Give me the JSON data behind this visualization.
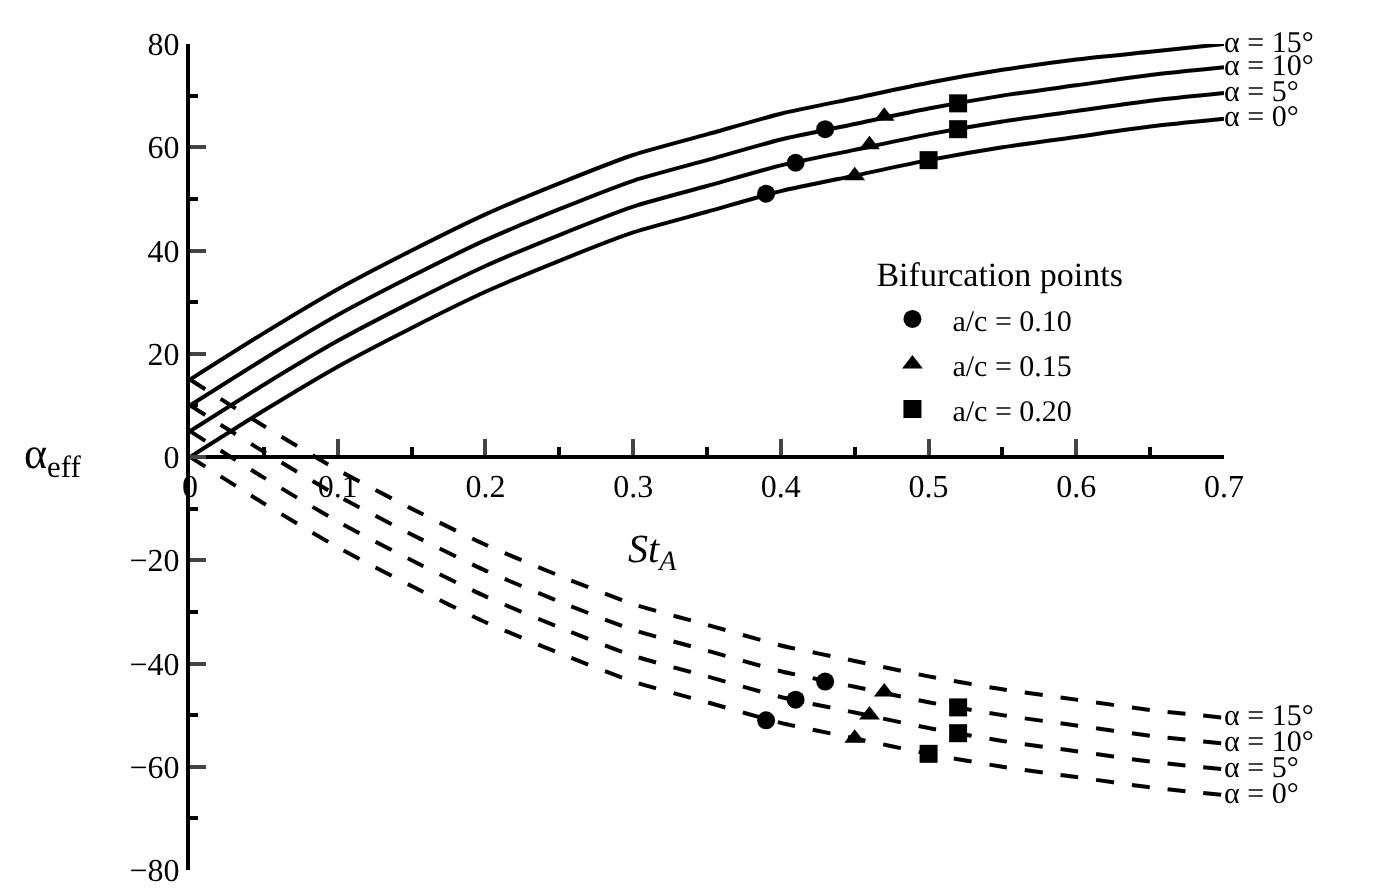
{
  "chart_data": {
    "type": "line",
    "xlabel": "St$_{A}$",
    "ylabel": "α$_{eff}$",
    "legend_title": "Bifurcation points",
    "xlim": [
      0,
      0.7
    ],
    "xticks": [
      0,
      0.1,
      0.2,
      0.3,
      0.4,
      0.5,
      0.6,
      0.7
    ],
    "ylim": [
      -80,
      80
    ],
    "yticks": [
      {
        "value": -80,
        "label": "−80"
      },
      {
        "value": -60,
        "label": "−60"
      },
      {
        "value": -40,
        "label": "−40"
      },
      {
        "value": -20,
        "label": "−20"
      },
      0,
      20,
      40,
      60,
      80
    ],
    "x": [
      0,
      0.05,
      0.1,
      0.15,
      0.2,
      0.25,
      0.3,
      0.35,
      0.4,
      0.45,
      0.5,
      0.55,
      0.6,
      0.65,
      0.7
    ],
    "legend": "right",
    "grid": false,
    "marker": "none",
    "series": [
      {
        "name": "α = 0°",
        "color": "#000000",
        "line_style": "solid",
        "values": [
          0,
          9,
          17.5,
          25,
          32,
          38,
          43.5,
          47.5,
          51.5,
          54.5,
          57.5,
          60,
          62,
          64,
          65.5
        ]
      },
      {
        "name": "α = 5°",
        "color": "#000000",
        "line_style": "solid",
        "values": [
          5,
          14,
          22.5,
          30,
          37,
          43,
          48.5,
          52.5,
          56.5,
          59.5,
          62.5,
          65,
          67,
          69,
          70.5
        ]
      },
      {
        "name": "α = 10°",
        "color": "#000000",
        "line_style": "solid",
        "values": [
          10,
          19,
          27.5,
          35,
          42,
          48,
          53.5,
          57.5,
          61.5,
          64.5,
          67.5,
          70,
          72,
          74,
          75.5
        ]
      },
      {
        "name": "α = 15°",
        "color": "#000000",
        "line_style": "solid",
        "values": [
          15,
          24,
          32.5,
          40,
          47,
          53,
          58.5,
          62.5,
          66.5,
          69.5,
          72.5,
          75,
          77,
          78.5,
          80
        ]
      },
      {
        "name": "α = 0°",
        "color": "#000000",
        "line_style": "dashed",
        "values": [
          0,
          -9,
          -17.5,
          -25,
          -32,
          -38,
          -43.5,
          -47.5,
          -51.5,
          -54.5,
          -57.5,
          -60,
          -62,
          -64,
          -65.5
        ]
      },
      {
        "name": "α = 5°",
        "color": "#000000",
        "line_style": "dashed",
        "values": [
          5,
          -4,
          -12.5,
          -20,
          -27,
          -33,
          -38.5,
          -42.5,
          -46.5,
          -49.5,
          -52.5,
          -55,
          -57,
          -59,
          -60.5
        ]
      },
      {
        "name": "α = 10°",
        "color": "#000000",
        "line_style": "dashed",
        "values": [
          10,
          1,
          -7.5,
          -15,
          -22,
          -28,
          -33.5,
          -37.5,
          -41.5,
          -44.5,
          -47.5,
          -50,
          -52,
          -54,
          -55.5
        ]
      },
      {
        "name": "α = 15°",
        "color": "#000000",
        "line_style": "dashed",
        "values": [
          15,
          6,
          -2.5,
          -10,
          -17,
          -23,
          -28.5,
          -32.5,
          -36.5,
          -39.5,
          -42.5,
          -45,
          -47,
          -49,
          -50.5
        ]
      },
      {
        "type": "scatter",
        "name": "a/c = 0.10",
        "marker": "circle",
        "color": "#000000",
        "x": [
          0.39,
          0.41,
          0.43,
          0.39,
          0.41,
          0.43
        ],
        "values": [
          51,
          57,
          63.5,
          -51,
          -47,
          -43.5
        ]
      },
      {
        "type": "scatter",
        "name": "a/c = 0.15",
        "marker": "triangle",
        "color": "#000000",
        "x": [
          0.45,
          0.46,
          0.47,
          0.45,
          0.46,
          0.47
        ],
        "values": [
          54.5,
          60.5,
          66,
          -54.5,
          -50,
          -45.5
        ]
      },
      {
        "type": "scatter",
        "name": "a/c = 0.20",
        "marker": "square",
        "color": "#000000",
        "x": [
          0.5,
          0.52,
          0.52,
          0.5,
          0.52,
          0.52
        ],
        "values": [
          57.5,
          63.5,
          68.5,
          -57.5,
          -53.5,
          -48.5
        ]
      }
    ]
  }
}
